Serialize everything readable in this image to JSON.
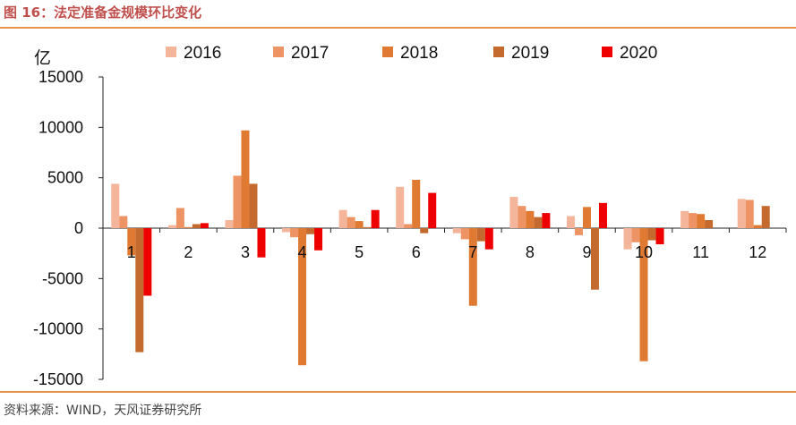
{
  "header": {
    "title": "图 16：法定准备金规模环比变化"
  },
  "footer": {
    "source": "资料来源：WIND，天风证券研究所"
  },
  "chart_data": {
    "type": "bar",
    "title": "",
    "xlabel": "",
    "ylabel": "亿",
    "ylim": [
      -15000,
      15000
    ],
    "yticks": [
      15000,
      10000,
      5000,
      0,
      -5000,
      -10000,
      -15000
    ],
    "grid": false,
    "legend_position": "top",
    "categories": [
      "1",
      "2",
      "3",
      "4",
      "5",
      "6",
      "7",
      "8",
      "9",
      "10",
      "11",
      "12"
    ],
    "series": [
      {
        "name": "2016",
        "color": "#f4b59a",
        "values": [
          4400,
          300,
          800,
          -400,
          1800,
          4100,
          -500,
          3100,
          1200,
          -2100,
          1700,
          2900
        ]
      },
      {
        "name": "2017",
        "color": "#ee9363",
        "values": [
          1200,
          2000,
          5200,
          -900,
          1100,
          400,
          -1100,
          2200,
          -700,
          -1400,
          1500,
          2800
        ]
      },
      {
        "name": "2018",
        "color": "#e07a32",
        "values": [
          -2700,
          100,
          9700,
          -13600,
          700,
          4800,
          -7700,
          1700,
          2100,
          -13200,
          1400,
          300
        ]
      },
      {
        "name": "2019",
        "color": "#c46a2e",
        "values": [
          -12300,
          400,
          4400,
          -600,
          100,
          -500,
          -1300,
          1100,
          -6100,
          -1200,
          800,
          2200
        ]
      },
      {
        "name": "2020",
        "color": "#ee0000",
        "values": [
          -6700,
          500,
          -2900,
          -2200,
          1800,
          3500,
          -2100,
          1500,
          2500,
          -1600,
          null,
          null
        ]
      }
    ]
  }
}
